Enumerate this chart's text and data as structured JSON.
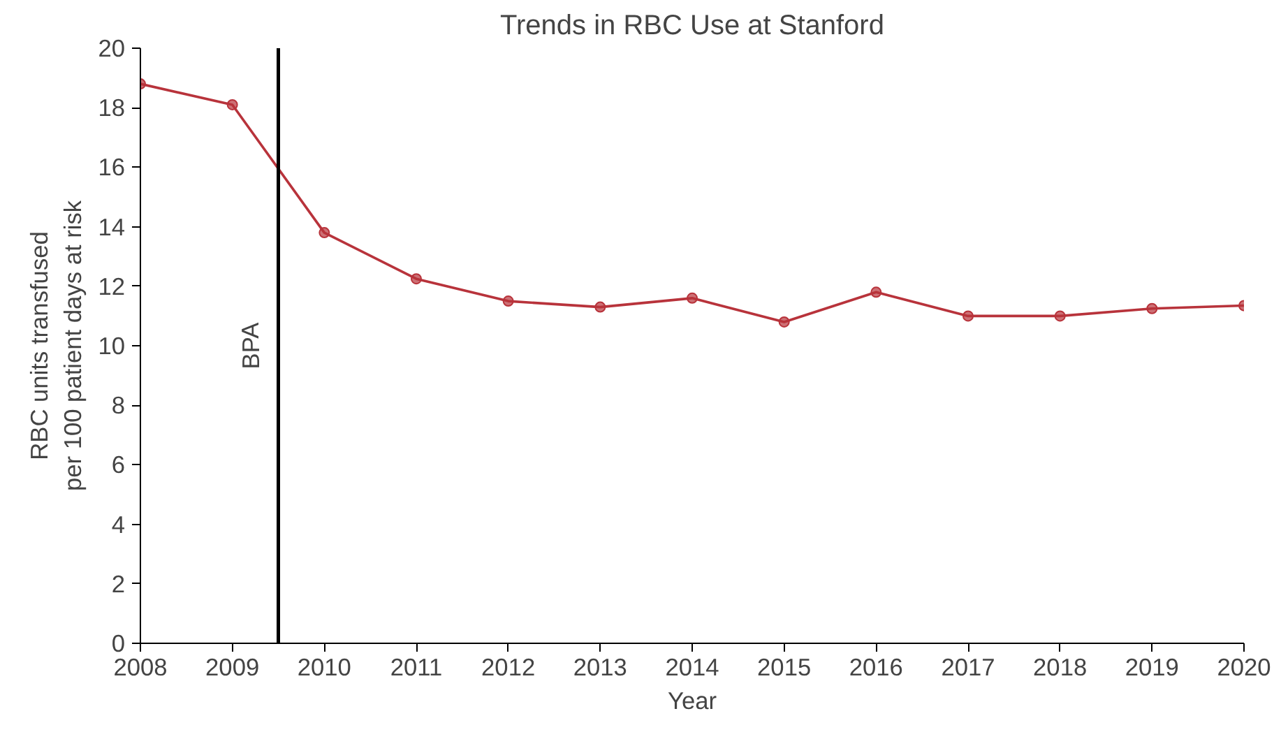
{
  "chart_data": {
    "type": "line",
    "title": "Trends in RBC Use at Stanford",
    "xlabel": "Year",
    "ylabel": "RBC units transfused\nper 100 patient days at risk",
    "x": [
      2008,
      2009,
      2010,
      2011,
      2012,
      2013,
      2014,
      2015,
      2016,
      2017,
      2018,
      2019,
      2020
    ],
    "series": [
      {
        "color": "#b8333b",
        "values": [
          18.8,
          18.1,
          13.8,
          12.25,
          11.5,
          11.3,
          11.6,
          10.8,
          11.8,
          11.0,
          11.0,
          11.25,
          11.35
        ]
      }
    ],
    "xlim": [
      2008,
      2020
    ],
    "xticks": [
      2008,
      2009,
      2010,
      2011,
      2012,
      2013,
      2014,
      2015,
      2016,
      2017,
      2018,
      2019,
      2020
    ],
    "ylim": [
      0,
      20
    ],
    "yticks": [
      0,
      2,
      4,
      6,
      8,
      10,
      12,
      14,
      16,
      18,
      20
    ],
    "ref_lines": [
      {
        "axis": "x",
        "value": 2009.5,
        "label": "BPA",
        "color": "#000000"
      }
    ],
    "grid": false,
    "marker": "circle",
    "line_style": "solid"
  }
}
